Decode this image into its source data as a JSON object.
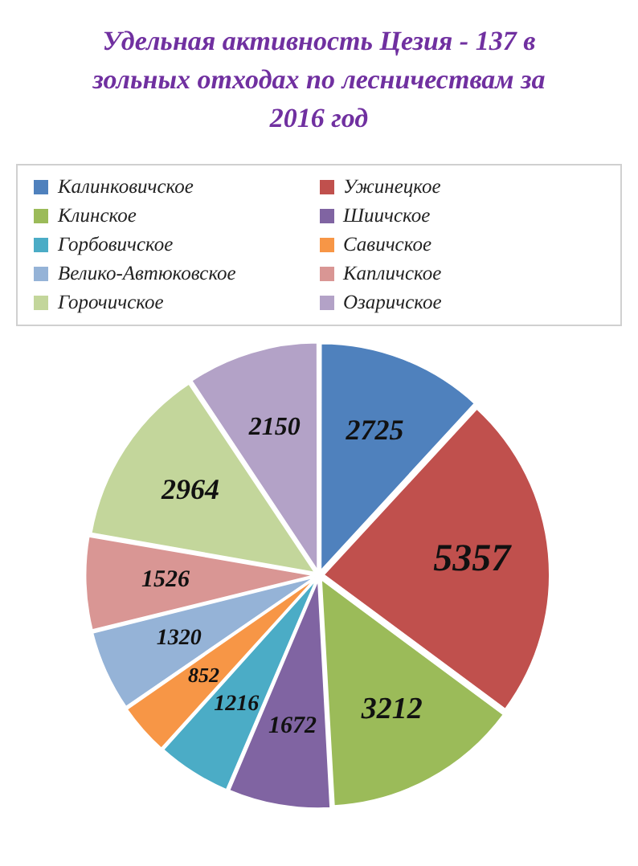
{
  "chart_data": {
    "type": "pie",
    "title": "Удельная активность Цезия - 137 в зольных отходах по лесничествам за 2016 год",
    "categories": [
      "Калинковичское",
      "Ужинецкое",
      "Клинское",
      "Шиичское",
      "Горбовичское",
      "Савичское",
      "Велико-Автюковское",
      "Капличское",
      "Горочичское",
      "Озаричское"
    ],
    "values": [
      2725,
      5357,
      3212,
      1672,
      1216,
      852,
      1320,
      1526,
      2964,
      2150
    ],
    "colors": [
      "#4f81bd",
      "#c0504d",
      "#9bbb59",
      "#8064a2",
      "#4bacc6",
      "#f79646",
      "#95b3d7",
      "#d99694",
      "#c3d69b",
      "#b3a2c7"
    ],
    "legend": "top",
    "data_labels": true
  }
}
